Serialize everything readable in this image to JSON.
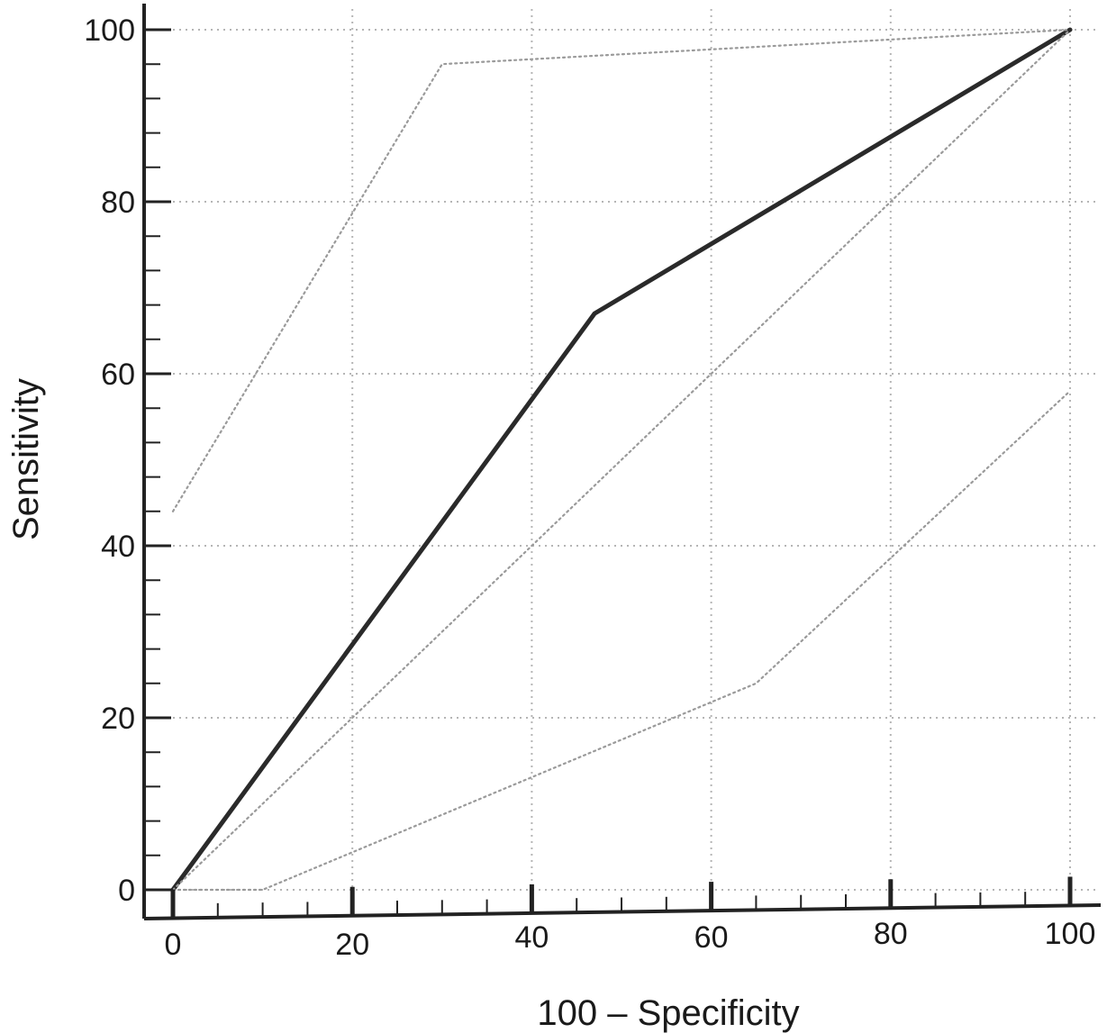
{
  "chart_data": {
    "type": "line",
    "title": "",
    "xlabel": "100 – Specificity",
    "ylabel": "Sensitivity",
    "xlim": [
      0,
      100
    ],
    "ylim": [
      0,
      100
    ],
    "xticks": [
      0,
      20,
      40,
      60,
      80,
      100
    ],
    "yticks": [
      0,
      20,
      40,
      60,
      80,
      100
    ],
    "grid": true,
    "series": [
      {
        "style": "solid-thick",
        "color": "#2a2a2a",
        "points": [
          [
            0,
            0
          ],
          [
            47,
            67
          ],
          [
            100,
            100
          ]
        ]
      },
      {
        "style": "dotted",
        "color": "#9a9a9a",
        "points": [
          [
            0,
            44
          ],
          [
            30,
            96
          ],
          [
            100,
            100
          ]
        ]
      },
      {
        "style": "dotted",
        "color": "#9a9a9a",
        "points": [
          [
            0,
            0
          ],
          [
            100,
            100
          ]
        ]
      },
      {
        "style": "dotted",
        "color": "#9a9a9a",
        "points": [
          [
            0,
            0
          ],
          [
            10,
            0
          ],
          [
            65,
            24
          ],
          [
            100,
            58
          ]
        ]
      }
    ]
  }
}
